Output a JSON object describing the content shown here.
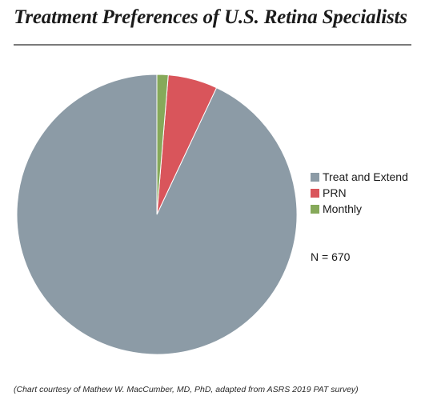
{
  "chart_data": {
    "type": "pie",
    "title": "Treatment Preferences of U.S. Retina Specialists",
    "categories": [
      "Treat and Extend",
      "PRN",
      "Monthly"
    ],
    "values": [
      93,
      5.7,
      1.3
    ],
    "unit": "%",
    "colors": [
      "#8c9ba6",
      "#d9555b",
      "#86a95a"
    ],
    "legend_position": "right",
    "annotation": "N = 670"
  },
  "caption": "(Chart courtesy of Mathew W. MacCumber, MD, PhD, adapted from ASRS 2019 PAT survey)"
}
